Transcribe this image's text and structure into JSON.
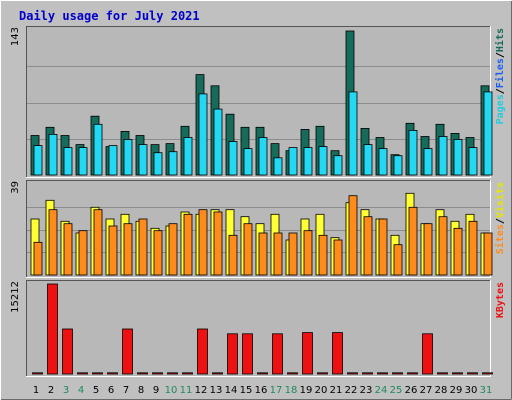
{
  "title": "Daily usage for July 2021",
  "colors": {
    "background": "#c0c0c0",
    "plot_bg": "#b8b8b8",
    "hits": "#166b5a",
    "files": "#22d8f2",
    "visits": "#ffff33",
    "sites": "#ff8c1a",
    "kbytes": "#ee1111",
    "weekday_label": "#000000",
    "weekend_label": "#1e8a5a"
  },
  "chart_data": [
    {
      "type": "bar",
      "panel": "hits-files-pages",
      "y_max_label": "143",
      "ylim": [
        0,
        143
      ],
      "grid": true,
      "right_label_parts": [
        {
          "text": "Pages",
          "color": "#22cce0"
        },
        {
          "text": "/",
          "color": "#000000"
        },
        {
          "text": "Files",
          "color": "#1a5ef0"
        },
        {
          "text": "/",
          "color": "#000000"
        },
        {
          "text": "Hits",
          "color": "#166b5a"
        }
      ],
      "x": [
        1,
        2,
        3,
        4,
        5,
        6,
        7,
        8,
        9,
        10,
        11,
        12,
        13,
        14,
        15,
        16,
        17,
        18,
        19,
        20,
        21,
        22,
        23,
        24,
        25,
        26,
        27,
        28,
        29,
        30,
        31
      ],
      "series": [
        {
          "name": "Hits",
          "color": "#166b5a",
          "values": [
            39,
            47,
            39,
            30,
            58,
            28,
            43,
            39,
            30,
            31,
            48,
            99,
            88,
            60,
            47,
            47,
            31,
            24,
            45,
            48,
            24,
            142,
            46,
            37,
            20,
            51,
            38,
            50,
            41,
            37,
            88
          ]
        },
        {
          "name": "Files",
          "color": "#22d8f2",
          "values": [
            29,
            40,
            27,
            27,
            50,
            29,
            35,
            30,
            22,
            23,
            37,
            80,
            65,
            33,
            26,
            37,
            17,
            27,
            27,
            28,
            19,
            82,
            30,
            26,
            19,
            44,
            26,
            38,
            35,
            27,
            82
          ]
        }
      ]
    },
    {
      "type": "bar",
      "panel": "visits-sites",
      "y_max_label": "39",
      "ylim": [
        0,
        39
      ],
      "grid": true,
      "right_label_parts": [
        {
          "text": "Sites",
          "color": "#ff8c1a"
        },
        {
          "text": "/",
          "color": "#000000"
        },
        {
          "text": "Visits",
          "color": "#e6e600"
        }
      ],
      "x": [
        1,
        2,
        3,
        4,
        5,
        6,
        7,
        8,
        9,
        10,
        11,
        12,
        13,
        14,
        15,
        16,
        17,
        18,
        19,
        20,
        21,
        22,
        23,
        24,
        25,
        26,
        27,
        28,
        29,
        30,
        31
      ],
      "series": [
        {
          "name": "Visits",
          "color": "#ffff33",
          "values": [
            24,
            32,
            23,
            18,
            29,
            24,
            26,
            23,
            20,
            21,
            27,
            26,
            28,
            28,
            25,
            22,
            26,
            15,
            24,
            26,
            16,
            31,
            28,
            24,
            17,
            35,
            22,
            28,
            23,
            26,
            18
          ]
        },
        {
          "name": "Sites",
          "color": "#ff8c1a",
          "values": [
            14,
            28,
            22,
            19,
            28,
            21,
            22,
            24,
            19,
            22,
            26,
            28,
            27,
            17,
            22,
            18,
            18,
            18,
            19,
            17,
            15,
            34,
            25,
            24,
            13,
            29,
            22,
            25,
            20,
            23,
            18
          ]
        }
      ]
    },
    {
      "type": "bar",
      "panel": "kbytes",
      "y_max_label": "15212",
      "ylim": [
        0,
        15212
      ],
      "grid": false,
      "right_label_parts": [
        {
          "text": "KBytes",
          "color": "#ee1111"
        }
      ],
      "x": [
        1,
        2,
        3,
        4,
        5,
        6,
        7,
        8,
        9,
        10,
        11,
        12,
        13,
        14,
        15,
        16,
        17,
        18,
        19,
        20,
        21,
        22,
        23,
        24,
        25,
        26,
        27,
        28,
        29,
        30,
        31
      ],
      "series": [
        {
          "name": "KBytes",
          "color": "#ee1111",
          "values": [
            200,
            15212,
            7600,
            200,
            200,
            200,
            7600,
            200,
            200,
            200,
            200,
            7600,
            200,
            6800,
            6800,
            200,
            6800,
            200,
            7000,
            200,
            7000,
            200,
            200,
            200,
            200,
            200,
            6800,
            200,
            200,
            200,
            200
          ]
        }
      ]
    }
  ],
  "x_labels": [
    {
      "text": "1",
      "weekend": false
    },
    {
      "text": "2",
      "weekend": false
    },
    {
      "text": "3",
      "weekend": true
    },
    {
      "text": "4",
      "weekend": true
    },
    {
      "text": "5",
      "weekend": false
    },
    {
      "text": "6",
      "weekend": false
    },
    {
      "text": "7",
      "weekend": false
    },
    {
      "text": "8",
      "weekend": false
    },
    {
      "text": "9",
      "weekend": false
    },
    {
      "text": "10",
      "weekend": true
    },
    {
      "text": "11",
      "weekend": true
    },
    {
      "text": "12",
      "weekend": false
    },
    {
      "text": "13",
      "weekend": false
    },
    {
      "text": "14",
      "weekend": false
    },
    {
      "text": "15",
      "weekend": false
    },
    {
      "text": "16",
      "weekend": false
    },
    {
      "text": "17",
      "weekend": true
    },
    {
      "text": "18",
      "weekend": true
    },
    {
      "text": "19",
      "weekend": false
    },
    {
      "text": "20",
      "weekend": false
    },
    {
      "text": "21",
      "weekend": false
    },
    {
      "text": "22",
      "weekend": false
    },
    {
      "text": "23",
      "weekend": false
    },
    {
      "text": "24",
      "weekend": true
    },
    {
      "text": "25",
      "weekend": true
    },
    {
      "text": "26",
      "weekend": false
    },
    {
      "text": "27",
      "weekend": false
    },
    {
      "text": "28",
      "weekend": false
    },
    {
      "text": "29",
      "weekend": false
    },
    {
      "text": "30",
      "weekend": false
    },
    {
      "text": "31",
      "weekend": true
    }
  ]
}
